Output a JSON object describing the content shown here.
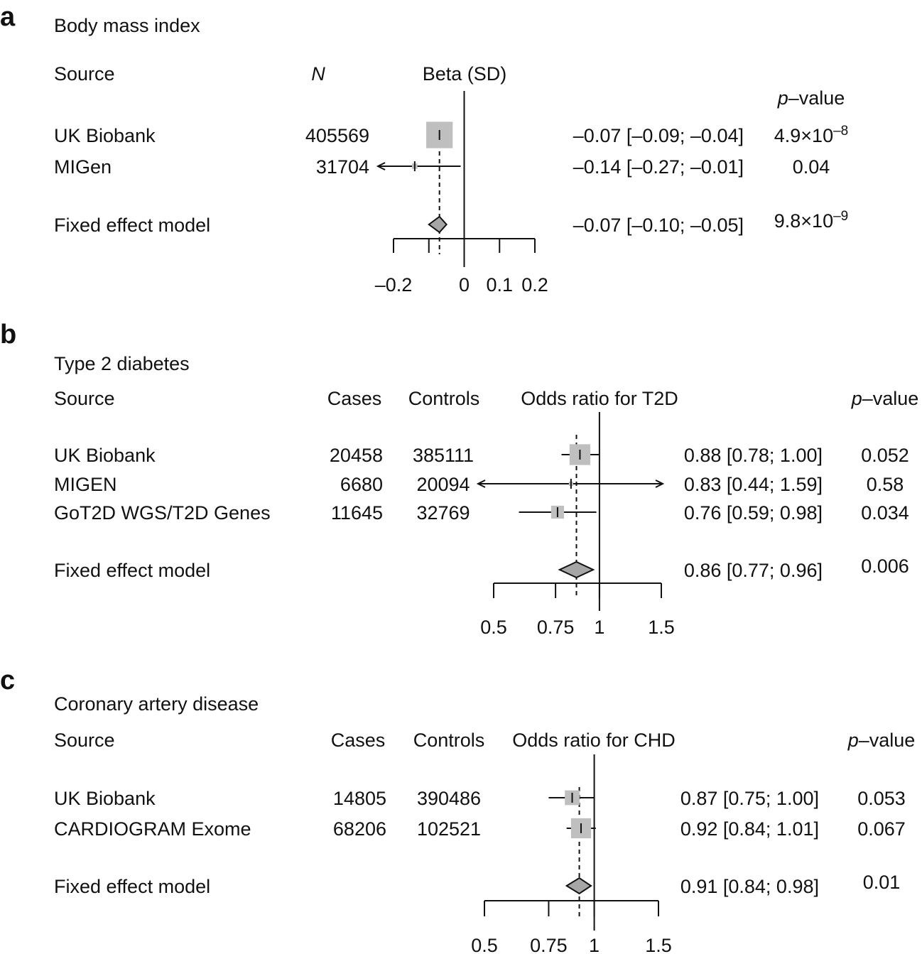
{
  "chart_data": [
    {
      "type": "forest",
      "panel": "a",
      "title": "Body mass index",
      "columns": {
        "source": "Source",
        "n": "N",
        "effect": "Beta (SD)",
        "p": "p–value"
      },
      "scale": "linear",
      "xlim": [
        -0.2,
        0.2
      ],
      "reference": 0,
      "ticks": [
        -0.2,
        -0.1,
        0,
        0.1,
        0.2
      ],
      "tick_labels": [
        "–0.2",
        "",
        "0",
        "0.1",
        "0.2"
      ],
      "rows": [
        {
          "source": "UK Biobank",
          "n": "405569",
          "est": -0.07,
          "lo": -0.09,
          "hi": -0.04,
          "weight": 0.96,
          "ci_text": "–0.07 [–0.09; –0.04]",
          "p_base": "4.9×10",
          "p_exp": "–8"
        },
        {
          "source": "MIGen",
          "n": "31704",
          "est": -0.14,
          "lo": -0.27,
          "hi": -0.01,
          "weight": 0.04,
          "ci_text": "–0.14 [–0.27; –0.01]",
          "p_base": "0.04",
          "p_exp": ""
        }
      ],
      "pooled": {
        "source": "Fixed effect model",
        "est": -0.07,
        "lo": -0.1,
        "hi": -0.05,
        "ci_text": "–0.07 [–0.10; –0.05]",
        "p_base": "9.8×10",
        "p_exp": "–9"
      }
    },
    {
      "type": "forest",
      "panel": "b",
      "title": "Type 2 diabetes",
      "columns": {
        "source": "Source",
        "cases": "Cases",
        "controls": "Controls",
        "effect": "Odds ratio for T2D",
        "p": "p–value"
      },
      "scale": "log",
      "xlim": [
        0.5,
        1.5
      ],
      "reference": 1,
      "ticks": [
        0.5,
        0.75,
        1,
        1.5
      ],
      "tick_labels": [
        "0.5",
        "0.75",
        "1",
        "1.5"
      ],
      "rows": [
        {
          "source": "UK Biobank",
          "cases": "20458",
          "controls": "385111",
          "est": 0.88,
          "lo": 0.78,
          "hi": 1.0,
          "weight": 0.7,
          "ci_text": "0.88 [0.78; 1.00]",
          "p_base": "0.052",
          "p_exp": ""
        },
        {
          "source": "MIGEN",
          "cases": "6680",
          "controls": "20094",
          "est": 0.83,
          "lo": 0.44,
          "hi": 1.59,
          "weight": 0.03,
          "ci_text": "0.83 [0.44; 1.59]",
          "p_base": "0.58",
          "p_exp": ""
        },
        {
          "source": "GoT2D WGS/T2D Genes",
          "cases": "11645",
          "controls": "32769",
          "est": 0.76,
          "lo": 0.59,
          "hi": 0.98,
          "weight": 0.27,
          "ci_text": "0.76 [0.59; 0.98]",
          "p_base": "0.034",
          "p_exp": ""
        }
      ],
      "pooled": {
        "source": "Fixed effect model",
        "est": 0.86,
        "lo": 0.77,
        "hi": 0.96,
        "ci_text": "0.86 [0.77; 0.96]",
        "p_base": "0.006",
        "p_exp": ""
      }
    },
    {
      "type": "forest",
      "panel": "c",
      "title": "Coronary artery disease",
      "columns": {
        "source": "Source",
        "cases": "Cases",
        "controls": "Controls",
        "effect": "Odds ratio for CHD",
        "p": "p–value"
      },
      "scale": "log",
      "xlim": [
        0.5,
        1.5
      ],
      "reference": 1,
      "ticks": [
        0.5,
        0.75,
        1,
        1.5
      ],
      "tick_labels": [
        "0.5",
        "0.75",
        "1",
        "1.5"
      ],
      "rows": [
        {
          "source": "UK Biobank",
          "cases": "14805",
          "controls": "390486",
          "est": 0.87,
          "lo": 0.75,
          "hi": 1.0,
          "weight": 0.35,
          "ci_text": "0.87 [0.75; 1.00]",
          "p_base": "0.053",
          "p_exp": ""
        },
        {
          "source": "CARDIOGRAM Exome",
          "cases": "68206",
          "controls": "102521",
          "est": 0.92,
          "lo": 0.84,
          "hi": 1.01,
          "weight": 0.65,
          "ci_text": "0.92 [0.84; 1.01]",
          "p_base": "0.067",
          "p_exp": ""
        }
      ],
      "pooled": {
        "source": "Fixed effect model",
        "est": 0.91,
        "lo": 0.84,
        "hi": 0.98,
        "ci_text": "0.91 [0.84; 0.98]",
        "p_base": "0.01",
        "p_exp": ""
      }
    }
  ]
}
